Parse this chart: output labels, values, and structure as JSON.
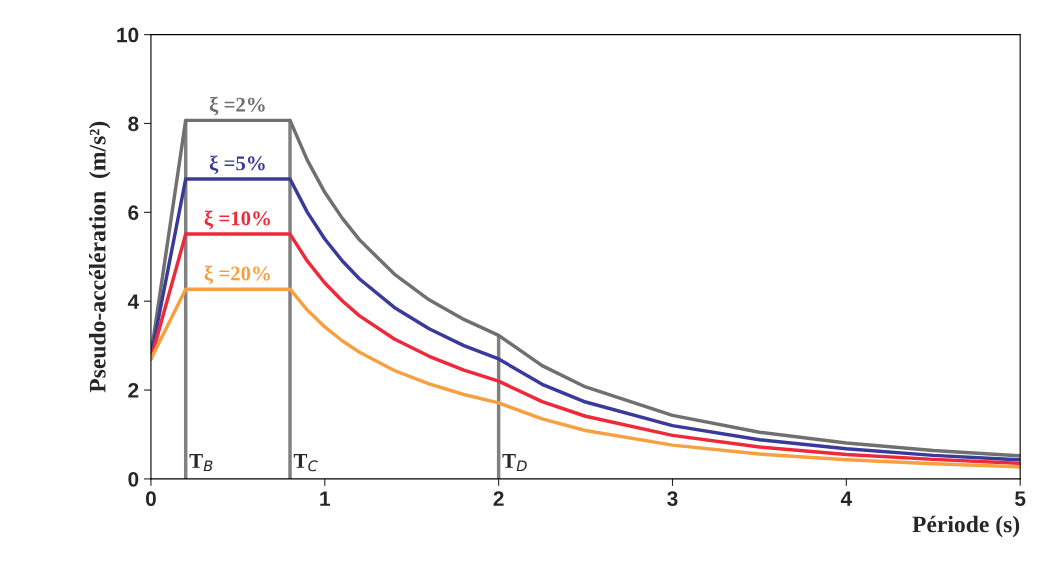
{
  "chart_data": {
    "type": "line",
    "xlabel": "Période (s)",
    "ylabel": "Pseudo-accélération  (m/s²)",
    "x": [
      0,
      0.2,
      0.8,
      0.9,
      1.0,
      1.1,
      1.2,
      1.4,
      1.6,
      1.8,
      2.0,
      2.25,
      2.5,
      3.0,
      3.5,
      4.0,
      4.5,
      5.0
    ],
    "series": [
      {
        "name": "ξ =2%",
        "color": "#707070",
        "values": [
          2.8,
          8.07,
          8.07,
          7.17,
          6.45,
          5.87,
          5.38,
          4.61,
          4.03,
          3.59,
          3.23,
          2.55,
          2.07,
          1.43,
          1.05,
          0.81,
          0.64,
          0.52
        ]
      },
      {
        "name": "ξ =5%",
        "color": "#3a3a9a",
        "values": [
          2.75,
          6.75,
          6.75,
          6.0,
          5.4,
          4.91,
          4.5,
          3.86,
          3.38,
          3.0,
          2.7,
          2.13,
          1.73,
          1.2,
          0.88,
          0.68,
          0.53,
          0.43
        ]
      },
      {
        "name": "ξ =10%",
        "color": "#ee2a3a",
        "values": [
          2.7,
          5.51,
          5.51,
          4.9,
          4.41,
          4.01,
          3.67,
          3.15,
          2.76,
          2.45,
          2.2,
          1.74,
          1.41,
          0.98,
          0.72,
          0.55,
          0.44,
          0.35
        ]
      },
      {
        "name": "ξ =20%",
        "color": "#f7a040",
        "values": [
          2.7,
          4.27,
          4.27,
          3.8,
          3.42,
          3.11,
          2.85,
          2.44,
          2.14,
          1.9,
          1.71,
          1.35,
          1.09,
          0.76,
          0.56,
          0.43,
          0.34,
          0.27
        ]
      }
    ],
    "ref_lines": [
      {
        "axis": "x",
        "value": 0.2,
        "label": "T$_{B}$",
        "color": "#808080"
      },
      {
        "axis": "x",
        "value": 0.8,
        "label": "T$_{C}$",
        "color": "#808080"
      },
      {
        "axis": "x",
        "value": 2.0,
        "label": "T$_{D}$",
        "color": "#808080"
      }
    ],
    "xlim": [
      0,
      5
    ],
    "xticks": [
      0,
      1,
      2,
      3,
      4,
      5
    ],
    "ylim": [
      0,
      10
    ],
    "yticks": [
      0,
      2,
      4,
      6,
      8,
      10
    ],
    "grid": false,
    "legend": false,
    "marker": "none",
    "line_style": "solid"
  }
}
